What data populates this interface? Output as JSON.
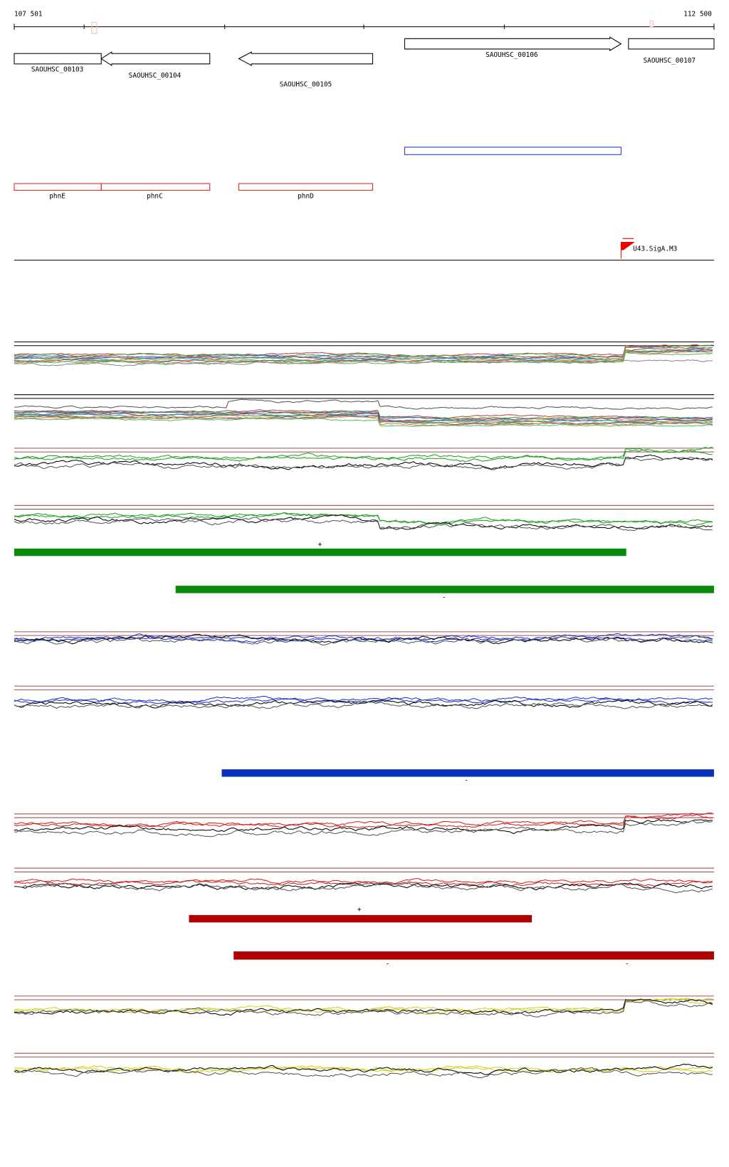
{
  "ruler": {
    "start": "107 501",
    "end": "112 500"
  },
  "genes": [
    {
      "label": "SAOUHSC_00103"
    },
    {
      "label": "SAOUHSC_00104"
    },
    {
      "label": "SAOUHSC_00105"
    },
    {
      "label": "SAOUHSC_00106"
    },
    {
      "label": "SAOUHSC_00107"
    }
  ],
  "features": [
    {
      "label": "phnE"
    },
    {
      "label": "phnC"
    },
    {
      "label": "phnD"
    }
  ],
  "promoter": {
    "label": "U43.SigA.M3"
  },
  "strand_labels": [
    "+",
    "-",
    "-",
    "+",
    "-",
    "-"
  ]
}
